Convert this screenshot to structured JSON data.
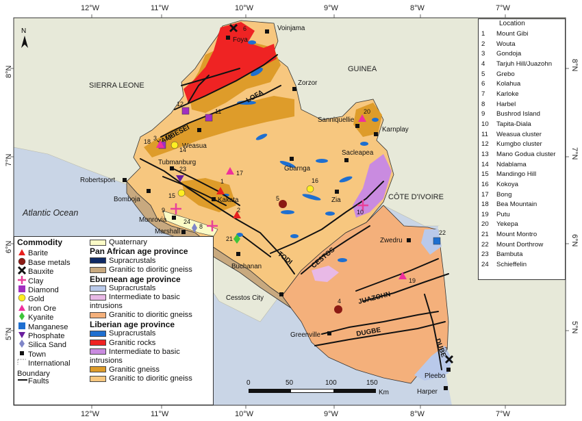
{
  "colors": {
    "ocean": "#c9d5e6",
    "land_outside": "#e7e9d9",
    "granitic_to_dioritic_gneiss": "#f7c77f",
    "granitic_gneiss": "#de9c2a",
    "granitic_rocks": "#ef2323",
    "supracrustals": "#1e6fd0",
    "eburnean_granitic_gneiss": "#f4b07b",
    "eburnean_intermediate": "#e8b9e6",
    "eburnean_supracrustals": "#b9c9ea",
    "pan_african_gneiss": "#c8a97f",
    "quaternary": "#fbfbc6",
    "liberian_intermediate": "#c98be0"
  },
  "axes": {
    "top": [
      "12°W",
      "11°W",
      "10°W",
      "9°W",
      "8°W",
      "7°W"
    ],
    "bottom": [
      "12°W",
      "11°W",
      "10°W",
      "9°W",
      "8°W",
      "7°W"
    ],
    "left": [
      "8°N",
      "7°N",
      "6°N",
      "5°N"
    ],
    "right": [
      "8°N",
      "7°N",
      "6°N",
      "5°N"
    ]
  },
  "north_arrow": "N",
  "country_labels": [
    "SIERRA LEONE",
    "GUINEA",
    "CÔTE D'IVOIRE"
  ],
  "ocean_label": "Atlantic Ocean",
  "fault_labels": [
    "LOFA",
    "YAMBESEI",
    "TODI",
    "CESTOS",
    "JUAZOHN",
    "DUGBE",
    "DUBE"
  ],
  "towns": [
    "Foya",
    "Voinjama",
    "Zorzor",
    "Sanniquellie",
    "Karnplay",
    "Weasua",
    "Tubmanburg",
    "Gbarnga",
    "Sacleapea",
    "Robertsport",
    "Bomboja",
    "Kakata",
    "Zia",
    "Monrovia",
    "Marshall",
    "Buchanan",
    "Zwedru",
    "Cesstos City",
    "Greenville",
    "Pleebo",
    "Harper"
  ],
  "site_numbers": [
    "1",
    "2",
    "3",
    "4",
    "5",
    "6",
    "7",
    "8",
    "9",
    "10",
    "11",
    "12",
    "13",
    "14",
    "15",
    "16",
    "17",
    "18",
    "19",
    "20",
    "21",
    "22",
    "23",
    "24"
  ],
  "location_header": "Location",
  "locations": [
    {
      "n": "1",
      "name": "Mount Gibi"
    },
    {
      "n": "2",
      "name": "Wouta"
    },
    {
      "n": "3",
      "name": "Gondoja"
    },
    {
      "n": "4",
      "name": "Tarjuh Hill/Juazohn"
    },
    {
      "n": "5",
      "name": "Grebo"
    },
    {
      "n": "6",
      "name": "Kolahua"
    },
    {
      "n": "7",
      "name": "Karloke"
    },
    {
      "n": "8",
      "name": "Harbel"
    },
    {
      "n": "9",
      "name": "Bushrod Island"
    },
    {
      "n": "10",
      "name": "Tapita-Diala"
    },
    {
      "n": "11",
      "name": "Weasua cluster"
    },
    {
      "n": "12",
      "name": "Kumgbo cluster"
    },
    {
      "n": "13",
      "name": "Mano Godua cluster"
    },
    {
      "n": "14",
      "name": "Ndablama"
    },
    {
      "n": "15",
      "name": "Mandingo Hill"
    },
    {
      "n": "16",
      "name": "Kokoya"
    },
    {
      "n": "17",
      "name": "Bong"
    },
    {
      "n": "18",
      "name": "Bea Mountain"
    },
    {
      "n": "19",
      "name": "Putu"
    },
    {
      "n": "20",
      "name": "Yekepa"
    },
    {
      "n": "21",
      "name": "Mount Montro"
    },
    {
      "n": "22",
      "name": "Mount Dorthrow"
    },
    {
      "n": "23",
      "name": "Bambuta"
    },
    {
      "n": "24",
      "name": "Schieffelin"
    }
  ],
  "legend": {
    "commodity_title": "Commodity",
    "commodities": [
      {
        "label": "Barite",
        "icon": "triangle-icon",
        "color": "#e8201e"
      },
      {
        "label": "Base metals",
        "icon": "circle-icon",
        "color": "#8b1a14"
      },
      {
        "label": "Bauxite",
        "icon": "cross-icon",
        "color": "#111111"
      },
      {
        "label": "Clay",
        "icon": "plus-icon",
        "color": "#e8409a"
      },
      {
        "label": "Diamond",
        "icon": "square-icon",
        "color": "#a12fc0"
      },
      {
        "label": "Gold",
        "icon": "circle-icon",
        "color": "#ffee22"
      },
      {
        "label": "Iron Ore",
        "icon": "triangle-icon",
        "color": "#ef2f9c"
      },
      {
        "label": "Kyanite",
        "icon": "diamond-icon",
        "color": "#3ec43a"
      },
      {
        "label": "Manganese",
        "icon": "square-icon",
        "color": "#1e6fd0"
      },
      {
        "label": "Phosphate",
        "icon": "down-triangle-icon",
        "color": "#6a1f9e"
      },
      {
        "label": "Silica Sand",
        "icon": "diamond-icon",
        "color": "#7f86c8"
      },
      {
        "label": "Town",
        "icon": "small-square-icon",
        "color": "#111111"
      },
      {
        "label": "International Boundary",
        "icon": "boundary-icon",
        "color": "#888888"
      },
      {
        "label": "Faults",
        "icon": "line-icon",
        "color": "#111111"
      }
    ],
    "quaternary": "Quaternary",
    "pan_african_title": "Pan African age province",
    "pan_african": [
      {
        "label": "Supracrustals",
        "color": "#0f2a66"
      },
      {
        "label": "Granitic to dioritic gneiss",
        "color": "#c8a97f"
      }
    ],
    "eburnean_title": "Eburnean age province",
    "eburnean": [
      {
        "label": "Supracrustals",
        "color": "#b9c9ea"
      },
      {
        "label": "Intermediate to basic intrusions",
        "color": "#e8b9e6"
      },
      {
        "label": "Granitic to dioritic gneiss",
        "color": "#f4b07b"
      }
    ],
    "liberian_title": "Liberian age province",
    "liberian": [
      {
        "label": "Supracrustals",
        "color": "#1e6fd0"
      },
      {
        "label": "Granitic rocks",
        "color": "#ef2323"
      },
      {
        "label": "Intermediate to basic intrusions",
        "color": "#c98be0"
      },
      {
        "label": "Granitic gneiss",
        "color": "#de9c2a"
      },
      {
        "label": "Granitic to dioritic gneiss",
        "color": "#f7c77f"
      }
    ]
  },
  "scale": {
    "ticks": [
      "0",
      "50",
      "100",
      "150"
    ],
    "unit": "Km"
  }
}
